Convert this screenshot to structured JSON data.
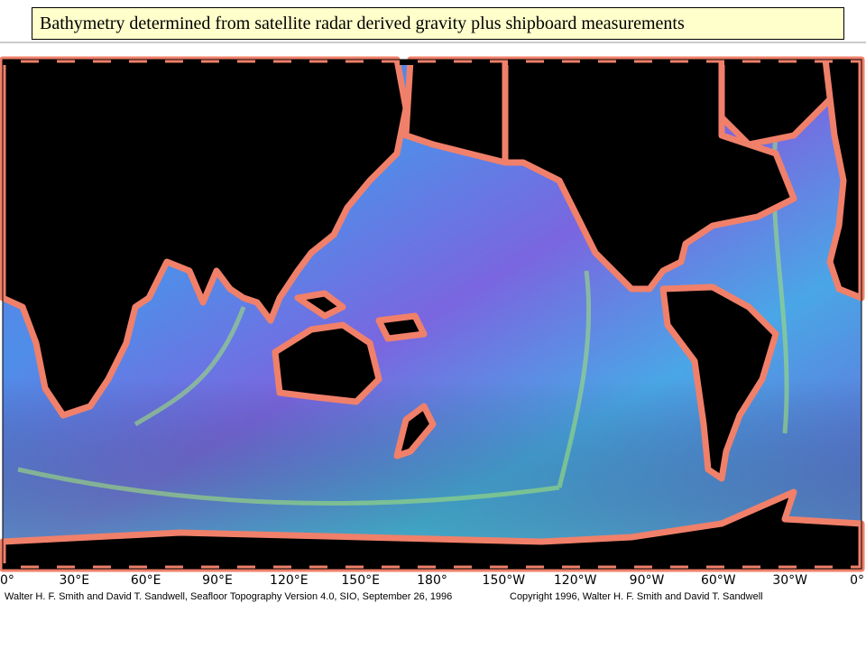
{
  "title": "Bathymetry determined from satellite radar derived gravity plus shipboard measurements",
  "map": {
    "longitude_labels": [
      "0°",
      "30°E",
      "60°E",
      "90°E",
      "120°E",
      "150°E",
      "180°",
      "150°W",
      "120°W",
      "90°W",
      "60°W",
      "30°W",
      "0°"
    ],
    "credit_left": "Walter H. F. Smith and David T. Sandwell, Seafloor Topography Version 4.0, SIO, September 26, 1996",
    "credit_right": "Copyright 1996, Walter H. F. Smith and David T. Sandwell"
  }
}
